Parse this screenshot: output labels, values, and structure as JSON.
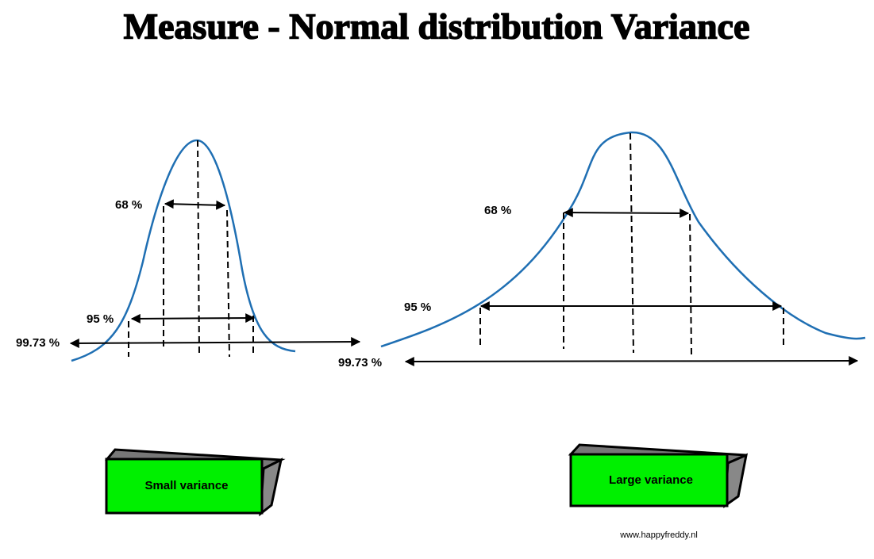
{
  "title": "Measure - Normal distribution Variance",
  "diagrams": [
    {
      "labels": {
        "sigma1": "68 %",
        "sigma2": "95 %",
        "sigma3": "99.73 %"
      },
      "caption": "Small variance"
    },
    {
      "labels": {
        "sigma1": "68 %",
        "sigma2": "95 %",
        "sigma3": "99.73 %"
      },
      "caption": "Large variance"
    }
  ],
  "footer": "www.happyfreddy.nl"
}
